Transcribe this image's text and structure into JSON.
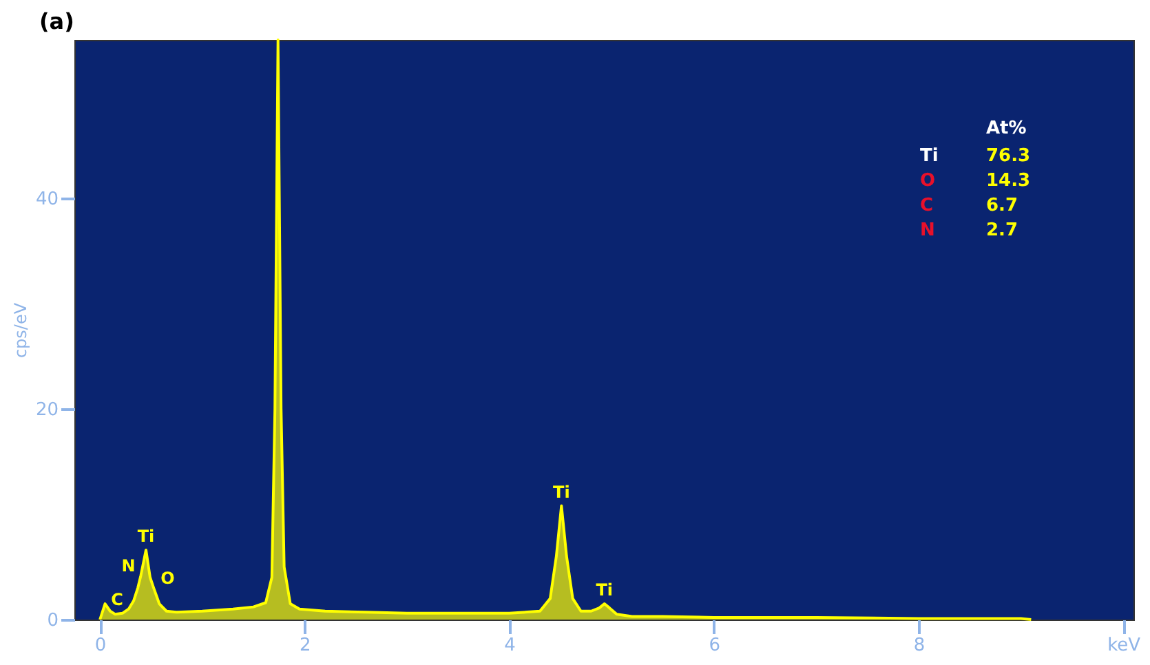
{
  "chart_data": {
    "type": "area",
    "title": "(a)",
    "ylabel": "cps/eV",
    "x": [
      0,
      0.05,
      0.1,
      0.15,
      0.22,
      0.28,
      0.33,
      0.37,
      0.4,
      0.45,
      0.49,
      0.525,
      0.58,
      0.65,
      0.75,
      1.0,
      1.3,
      1.5,
      1.62,
      1.68,
      1.71,
      1.74,
      1.77,
      1.8,
      1.86,
      1.95,
      2.2,
      2.6,
      3.0,
      3.5,
      4.0,
      4.3,
      4.4,
      4.46,
      4.51,
      4.56,
      4.62,
      4.7,
      4.8,
      4.88,
      4.93,
      4.98,
      5.05,
      5.2,
      5.5,
      6.0,
      7.0,
      8.0,
      9.0,
      9.1
    ],
    "series": [
      {
        "color": "#ffff00",
        "values": [
          0,
          1.5,
          0.8,
          0.5,
          0.6,
          1.0,
          1.8,
          3.0,
          4.2,
          6.6,
          4.0,
          3.0,
          1.5,
          0.8,
          0.7,
          0.8,
          1.0,
          1.2,
          1.6,
          4,
          20,
          55,
          20,
          5,
          1.5,
          1.0,
          0.8,
          0.7,
          0.6,
          0.6,
          0.6,
          0.8,
          2.0,
          6.0,
          10.8,
          6.0,
          2.0,
          0.8,
          0.8,
          1.1,
          1.5,
          1.1,
          0.5,
          0.3,
          0.3,
          0.2,
          0.2,
          0.1,
          0.1,
          0
        ]
      }
    ],
    "xlim": [
      -0.25,
      10.1
    ],
    "ylim": [
      0,
      55
    ],
    "xticks": [
      0,
      2,
      4,
      6,
      8,
      {
        "value": 10,
        "label": "keV"
      }
    ],
    "yticks": [
      0,
      20,
      40
    ],
    "grid": false,
    "annotations": [
      {
        "text": "C",
        "x": 0.28,
        "y": 1.0
      },
      {
        "text": "N",
        "x": 0.4,
        "y": 4.2
      },
      {
        "text": "Ti",
        "x": 0.45,
        "y": 6.6
      },
      {
        "text": "O",
        "x": 0.525,
        "y": 3.0
      },
      {
        "text": "Ti",
        "x": 4.51,
        "y": 10.8
      },
      {
        "text": "Ti",
        "x": 4.93,
        "y": 1.5
      },
      "At%",
      "Ti",
      "76.3",
      "O",
      "14.3",
      "C",
      "6.7",
      "N",
      "2.7"
    ]
  }
}
